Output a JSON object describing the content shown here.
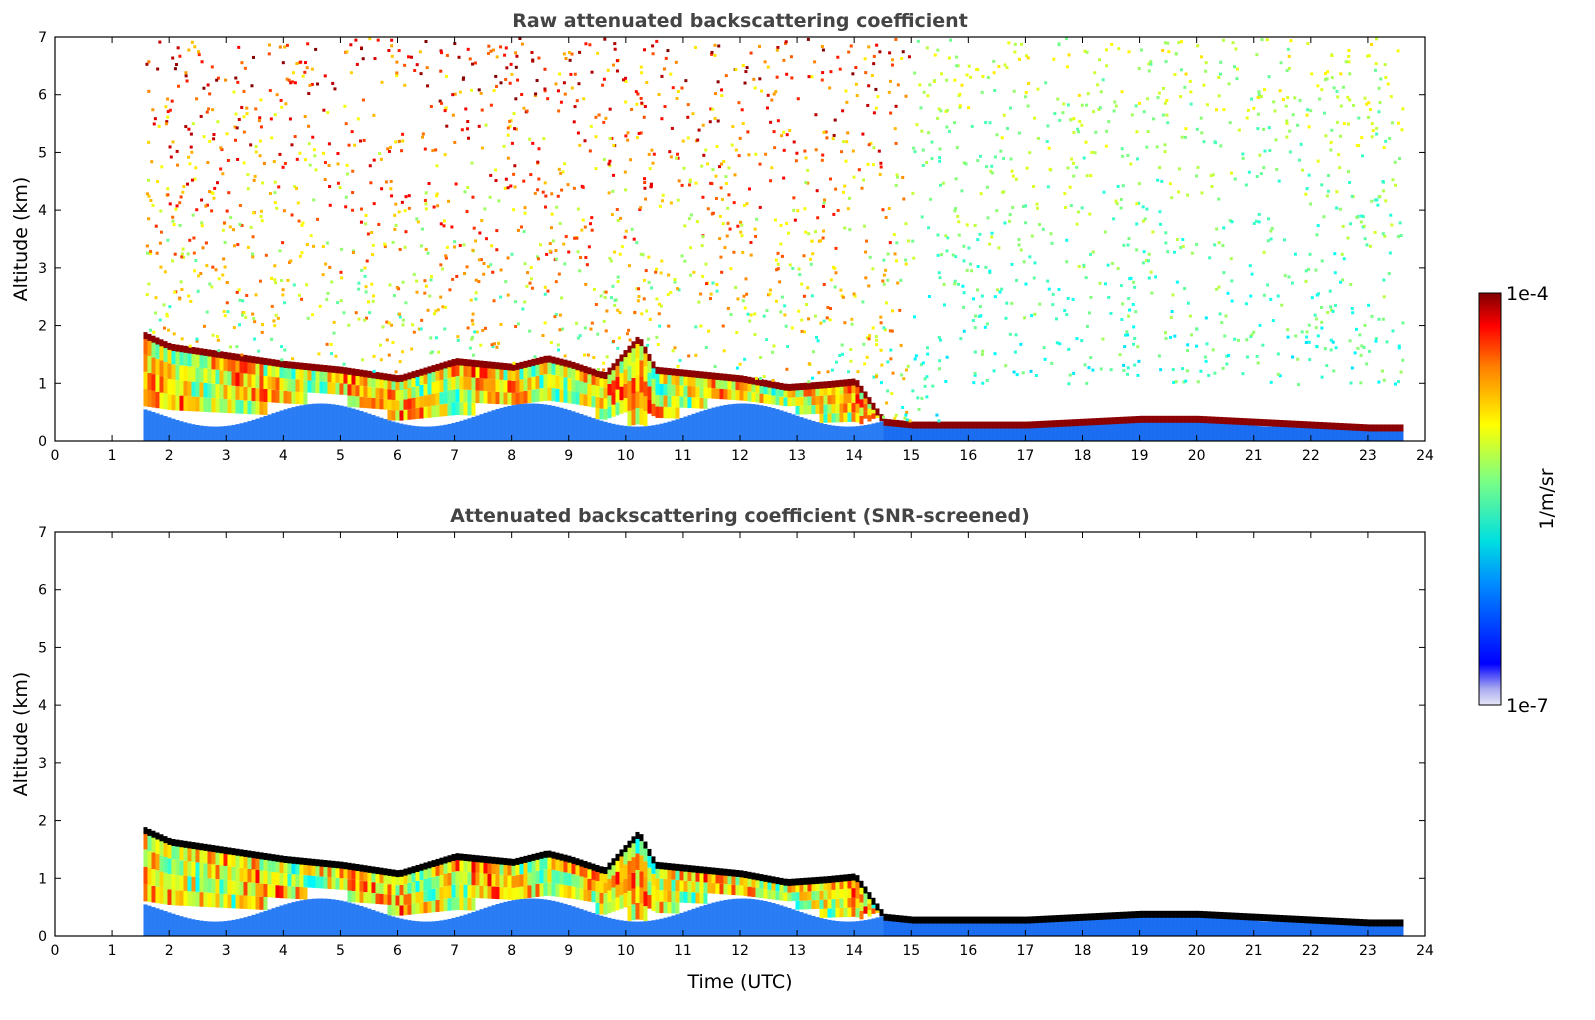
{
  "chart_data": [
    {
      "type": "heatmap",
      "title": "Raw attenuated backscattering coefficient",
      "xlabel": "",
      "ylabel": "Altitude (km)",
      "xlim": [
        0,
        24
      ],
      "ylim": [
        0,
        7
      ],
      "xticks": [
        "0",
        "1",
        "2",
        "3",
        "4",
        "5",
        "6",
        "7",
        "8",
        "9",
        "10",
        "11",
        "12",
        "13",
        "14",
        "15",
        "16",
        "17",
        "18",
        "19",
        "20",
        "21",
        "22",
        "23",
        "24"
      ],
      "yticks": [
        "0",
        "1",
        "2",
        "3",
        "4",
        "5",
        "6",
        "7"
      ],
      "data_time_range": [
        1.55,
        23.6
      ],
      "cloud_layer": {
        "time": [
          1.55,
          2,
          3,
          4,
          5,
          6,
          7,
          8,
          8.6,
          9,
          9.6,
          10.2,
          10.5,
          11,
          11.5,
          12,
          12.8,
          13.5,
          14,
          14.5,
          15,
          16,
          17,
          18,
          19,
          20,
          21,
          22,
          23,
          23.6
        ],
        "altitude_km": [
          1.8,
          1.6,
          1.45,
          1.3,
          1.2,
          1.05,
          1.35,
          1.25,
          1.4,
          1.3,
          1.1,
          1.75,
          1.2,
          1.15,
          1.1,
          1.05,
          0.9,
          0.95,
          1.0,
          0.3,
          0.25,
          0.25,
          0.25,
          0.3,
          0.35,
          0.35,
          0.3,
          0.25,
          0.2,
          0.2
        ]
      },
      "screened": false
    },
    {
      "type": "heatmap",
      "title": "Attenuated backscattering coefficient (SNR-screened)",
      "xlabel": "Time (UTC)",
      "ylabel": "Altitude (km)",
      "xlim": [
        0,
        24
      ],
      "ylim": [
        0,
        7
      ],
      "xticks": [
        "0",
        "1",
        "2",
        "3",
        "4",
        "5",
        "6",
        "7",
        "8",
        "9",
        "10",
        "11",
        "12",
        "13",
        "14",
        "15",
        "16",
        "17",
        "18",
        "19",
        "20",
        "21",
        "22",
        "23",
        "24"
      ],
      "yticks": [
        "0",
        "1",
        "2",
        "3",
        "4",
        "5",
        "6",
        "7"
      ],
      "data_time_range": [
        1.55,
        23.6
      ],
      "screened": true
    }
  ],
  "colorbar": {
    "min_label": "1e-7",
    "max_label": "1e-4",
    "label": "1/m/sr",
    "colormap": "jet"
  }
}
